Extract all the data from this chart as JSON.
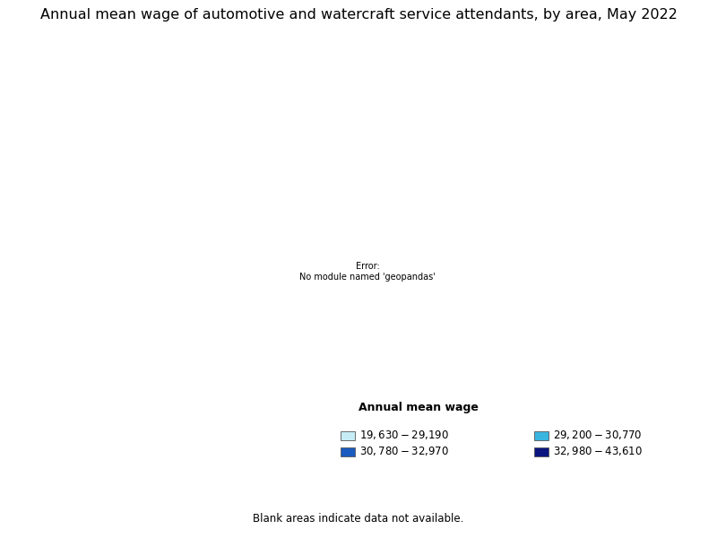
{
  "title": "Annual mean wage of automotive and watercraft service attendants, by area, May 2022",
  "legend_title": "Annual mean wage",
  "legend_entries": [
    {
      "label": "$19,630 - $29,190",
      "color": "#c6ecf5"
    },
    {
      "label": "$29,200 - $30,770",
      "color": "#3ab5e0"
    },
    {
      "label": "$30,780 - $32,970",
      "color": "#1a5bbf"
    },
    {
      "label": "$32,980 - $43,610",
      "color": "#0a1580"
    }
  ],
  "blank_color": "#ffffff",
  "blank_note": "Blank areas indicate data not available.",
  "background_color": "#ffffff",
  "title_fontsize": 11.5,
  "edge_color": "#000000",
  "area_edge_width": 0.3,
  "state_edge_width": 0.7
}
